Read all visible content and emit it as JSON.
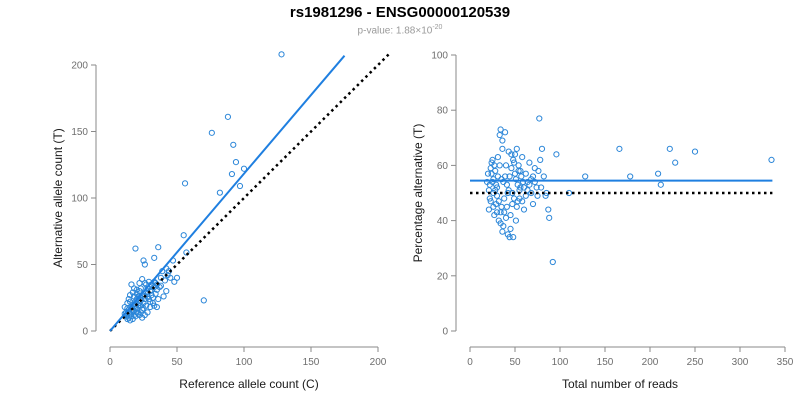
{
  "title": "rs1981296 - ENSG00000120539",
  "subtitle_prefix": "p-value: 1.88×10",
  "subtitle_exp": "-20",
  "colors": {
    "points": "#2b86d8",
    "fit": "#1f7fe0",
    "reference": "#000000",
    "axis": "#8a8a8a"
  },
  "chart_data": [
    {
      "type": "scatter",
      "xlabel": "Reference allele count (C)",
      "ylabel": "Alternative allele count (T)",
      "xlim": [
        0,
        200
      ],
      "ylim": [
        0,
        200
      ],
      "xticks": [
        0,
        50,
        100,
        150,
        200
      ],
      "yticks": [
        0,
        50,
        100,
        150,
        200
      ],
      "fit_line": {
        "from": [
          0,
          0
        ],
        "to": [
          175,
          207
        ],
        "style": "solid"
      },
      "reference_line": {
        "from": [
          0,
          0
        ],
        "to": [
          208,
          208
        ],
        "style": "dotted"
      },
      "points": [
        [
          128,
          208
        ],
        [
          88,
          161
        ],
        [
          76,
          149
        ],
        [
          92,
          140
        ],
        [
          94,
          127
        ],
        [
          100,
          122
        ],
        [
          56,
          111
        ],
        [
          91,
          118
        ],
        [
          82,
          104
        ],
        [
          97,
          109
        ],
        [
          55,
          72
        ],
        [
          57,
          59
        ],
        [
          70,
          23
        ],
        [
          50,
          40
        ],
        [
          44,
          45
        ],
        [
          47,
          53
        ],
        [
          42,
          47
        ],
        [
          36,
          63
        ],
        [
          25,
          53
        ],
        [
          26,
          50
        ],
        [
          19,
          62
        ],
        [
          33,
          55
        ],
        [
          39,
          45
        ],
        [
          38,
          40
        ],
        [
          33,
          37
        ],
        [
          30,
          33
        ],
        [
          27,
          35
        ],
        [
          22,
          30
        ],
        [
          24,
          27
        ],
        [
          30,
          30
        ],
        [
          28,
          32
        ],
        [
          20,
          24
        ],
        [
          18,
          20
        ],
        [
          14,
          16
        ],
        [
          16,
          18
        ],
        [
          21,
          26
        ],
        [
          25,
          28
        ],
        [
          23,
          32
        ],
        [
          18,
          26
        ],
        [
          15,
          22
        ],
        [
          12,
          14
        ],
        [
          13,
          17
        ],
        [
          17,
          15
        ],
        [
          19,
          17
        ],
        [
          22,
          21
        ],
        [
          26,
          24
        ],
        [
          29,
          24
        ],
        [
          31,
          27
        ],
        [
          34,
          28
        ],
        [
          27,
          19
        ],
        [
          30,
          18
        ],
        [
          25,
          17
        ],
        [
          20,
          14
        ],
        [
          23,
          14
        ],
        [
          18,
          12
        ],
        [
          16,
          11
        ],
        [
          15,
          13
        ],
        [
          14,
          10
        ],
        [
          13,
          12
        ],
        [
          17,
          9
        ],
        [
          19,
          11
        ],
        [
          21,
          13
        ],
        [
          24,
          16
        ],
        [
          28,
          14
        ],
        [
          26,
          12
        ],
        [
          32,
          21
        ],
        [
          35,
          31
        ],
        [
          37,
          33
        ],
        [
          40,
          26
        ],
        [
          35,
          18
        ],
        [
          15,
          27
        ],
        [
          17,
          29
        ],
        [
          13,
          21
        ],
        [
          11,
          18
        ],
        [
          14,
          24
        ],
        [
          18,
          32
        ],
        [
          20,
          31
        ],
        [
          22,
          36
        ],
        [
          24,
          39
        ],
        [
          16,
          35
        ],
        [
          12,
          11
        ],
        [
          11,
          13
        ],
        [
          14,
          14
        ],
        [
          21,
          19
        ],
        [
          23,
          23
        ],
        [
          28,
          26
        ],
        [
          32,
          25
        ],
        [
          27,
          29
        ],
        [
          19,
          22
        ],
        [
          16,
          16
        ],
        [
          25,
          21
        ],
        [
          30,
          22
        ],
        [
          33,
          19
        ],
        [
          36,
          24
        ],
        [
          20,
          17
        ],
        [
          18,
          15
        ],
        [
          22,
          12
        ],
        [
          24,
          10
        ],
        [
          13,
          9
        ],
        [
          15,
          8
        ],
        [
          26,
          36
        ],
        [
          29,
          37
        ],
        [
          31,
          35
        ],
        [
          34,
          36
        ],
        [
          38,
          34
        ],
        [
          41,
          38
        ],
        [
          43,
          42
        ],
        [
          45,
          40
        ],
        [
          48,
          37
        ],
        [
          42,
          30
        ],
        [
          20,
          28
        ],
        [
          22,
          26
        ],
        [
          26,
          26
        ],
        [
          28,
          28
        ],
        [
          31,
          31
        ],
        [
          33,
          33
        ],
        [
          35,
          35
        ],
        [
          17,
          20
        ],
        [
          19,
          19
        ],
        [
          23,
          19
        ]
      ]
    },
    {
      "type": "scatter",
      "xlabel": "Total number of reads",
      "ylabel": "Percentage alternative (T)",
      "xlim": [
        0,
        350
      ],
      "ylim": [
        0,
        100
      ],
      "xticks": [
        0,
        50,
        100,
        150,
        200,
        250,
        300,
        350
      ],
      "yticks": [
        0,
        20,
        40,
        60,
        80,
        100
      ],
      "fit_line": {
        "y": 54.5,
        "x_range": [
          0,
          336
        ],
        "style": "solid"
      },
      "reference_line": {
        "y": 50,
        "x_range": [
          0,
          336
        ],
        "style": "dotted"
      },
      "points": [
        [
          335,
          62
        ],
        [
          250,
          65
        ],
        [
          228,
          61
        ],
        [
          222,
          66
        ],
        [
          212,
          53
        ],
        [
          209,
          57
        ],
        [
          178,
          56
        ],
        [
          166,
          66
        ],
        [
          128,
          56
        ],
        [
          110,
          50
        ],
        [
          96,
          64
        ],
        [
          92,
          25
        ],
        [
          88,
          41
        ],
        [
          87,
          44
        ],
        [
          85,
          50
        ],
        [
          84,
          49
        ],
        [
          82,
          56
        ],
        [
          80,
          66
        ],
        [
          79,
          52
        ],
        [
          78,
          62
        ],
        [
          77,
          77
        ],
        [
          75,
          49
        ],
        [
          72,
          59
        ],
        [
          70,
          46
        ],
        [
          68,
          55
        ],
        [
          66,
          61
        ],
        [
          64,
          54
        ],
        [
          62,
          57
        ],
        [
          60,
          52
        ],
        [
          58,
          63
        ],
        [
          56,
          58
        ],
        [
          55,
          48
        ],
        [
          54,
          60
        ],
        [
          53,
          53
        ],
        [
          52,
          45
        ],
        [
          51,
          40
        ],
        [
          50,
          57
        ],
        [
          49,
          61
        ],
        [
          48,
          34
        ],
        [
          47,
          50
        ],
        [
          46,
          64
        ],
        [
          45,
          37
        ],
        [
          44,
          56
        ],
        [
          43,
          65
        ],
        [
          42,
          50
        ],
        [
          41,
          45
        ],
        [
          40,
          60
        ],
        [
          39,
          72
        ],
        [
          38,
          48
        ],
        [
          37,
          38
        ],
        [
          36,
          66
        ],
        [
          35,
          55
        ],
        [
          34,
          43
        ],
        [
          33,
          60
        ],
        [
          32,
          40
        ],
        [
          31,
          63
        ],
        [
          30,
          52
        ],
        [
          29,
          46
        ],
        [
          28,
          58
        ],
        [
          27,
          42
        ],
        [
          26,
          50
        ],
        [
          25,
          54
        ],
        [
          24,
          61
        ],
        [
          23,
          47
        ],
        [
          22,
          53
        ],
        [
          21,
          44
        ],
        [
          20,
          57
        ],
        [
          36,
          69
        ],
        [
          34,
          73
        ],
        [
          33,
          71
        ],
        [
          42,
          35
        ],
        [
          44,
          34
        ],
        [
          40,
          41
        ],
        [
          38,
          43
        ],
        [
          35,
          45
        ],
        [
          32,
          47
        ],
        [
          30,
          49
        ],
        [
          28,
          51
        ],
        [
          26,
          55
        ],
        [
          24,
          57
        ],
        [
          46,
          59
        ],
        [
          48,
          62
        ],
        [
          50,
          64
        ],
        [
          52,
          66
        ],
        [
          54,
          58
        ],
        [
          56,
          52
        ],
        [
          58,
          47
        ],
        [
          60,
          44
        ],
        [
          62,
          49
        ],
        [
          64,
          51
        ],
        [
          66,
          53
        ],
        [
          68,
          50
        ],
        [
          70,
          56
        ],
        [
          72,
          54
        ],
        [
          74,
          52
        ],
        [
          76,
          58
        ],
        [
          39,
          56
        ],
        [
          41,
          53
        ],
        [
          43,
          51
        ],
        [
          37,
          54
        ],
        [
          31,
          56
        ],
        [
          29,
          53
        ],
        [
          27,
          60
        ],
        [
          25,
          62
        ],
        [
          23,
          59
        ],
        [
          21,
          51
        ],
        [
          19,
          54
        ],
        [
          22,
          48
        ],
        [
          26,
          45
        ],
        [
          30,
          43
        ],
        [
          34,
          39
        ],
        [
          36,
          36
        ],
        [
          45,
          42
        ],
        [
          47,
          46
        ],
        [
          49,
          48
        ],
        [
          51,
          55
        ],
        [
          53,
          47
        ],
        [
          55,
          51
        ],
        [
          57,
          56
        ],
        [
          59,
          54
        ]
      ]
    }
  ]
}
